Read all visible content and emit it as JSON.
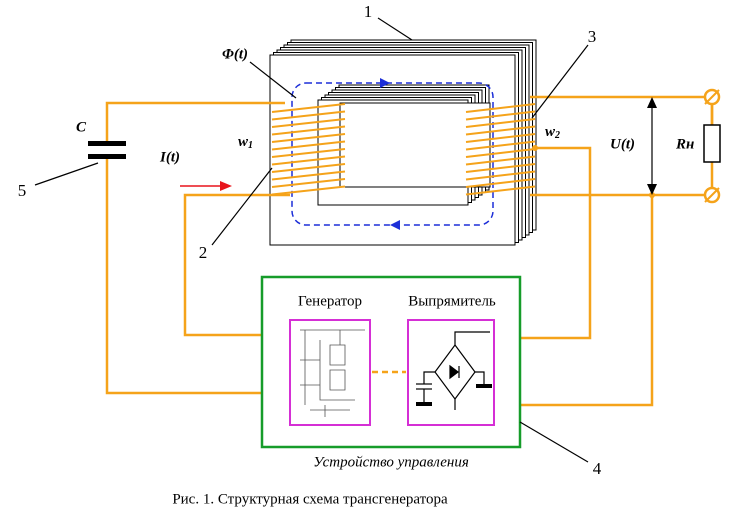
{
  "callouts": {
    "core": "1",
    "primary": "2",
    "secondary": "3",
    "control": "4",
    "capacitor": "5"
  },
  "flux": "Φ(t)",
  "capacitor": "C",
  "current": "I(t)",
  "w1": {
    "base": "w",
    "sub": "1"
  },
  "w2": {
    "base": "w",
    "sub": "2"
  },
  "voltage": "U(t)",
  "load": "Rн",
  "blocks": {
    "generator": "Генератор",
    "rectifier": "Выпрямитель",
    "control_unit": "Устройство управления"
  },
  "caption": "Рис. 1. Структурная схема трансгенератора"
}
